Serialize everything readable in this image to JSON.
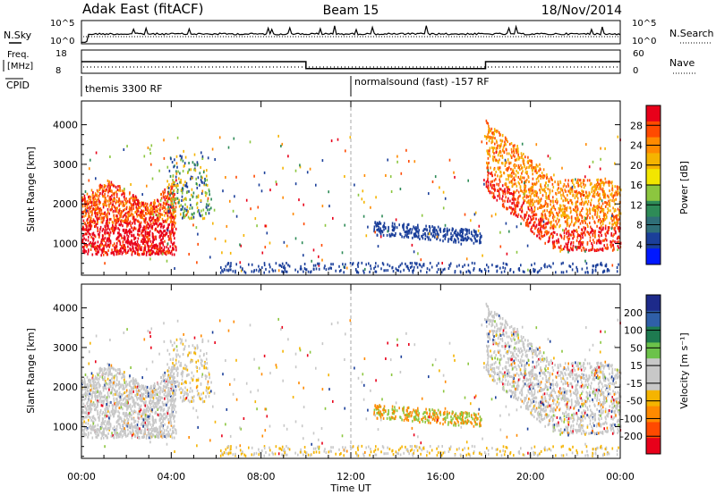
{
  "header": {
    "station": "Adak East (fitACF)",
    "beam": "Beam 15",
    "date": "18/Nov/2014"
  },
  "top_panels": {
    "nsky_label": "N.Sky",
    "nsearch_label": "N.Search",
    "nsky_ticks": [
      "10^5",
      "10^0"
    ],
    "nsearch_ticks": [
      "10^5",
      "10^0"
    ],
    "freq_label_line1": "Freq.",
    "freq_label_line2": "[MHz]",
    "freq_ticks": [
      "18",
      "8"
    ],
    "nave_label": "Nave",
    "nave_ticks": [
      "60",
      "0"
    ],
    "cpid_label": "CPID",
    "cpid_segments": [
      {
        "label": "themis 3300 RF",
        "start": "00:00",
        "end": "12:00"
      },
      {
        "label": "normalsound (fast) -157 RF",
        "start": "12:00",
        "end": "24:00"
      }
    ]
  },
  "power_panel": {
    "ylabel": "Slant Range [km]",
    "yticks": [
      "4000",
      "3000",
      "2000",
      "1000"
    ],
    "colorbar_label": "Power [dB]",
    "colorbar_ticks": [
      "28",
      "24",
      "20",
      "16",
      "12",
      "8",
      "4"
    ],
    "colorbar_colors": [
      "#e8001a",
      "#ff4a00",
      "#ff8a00",
      "#f5b400",
      "#f2e600",
      "#8cc63f",
      "#2e8b57",
      "#2f6e78",
      "#1b3f9a",
      "#0018ff"
    ]
  },
  "velocity_panel": {
    "ylabel": "Slant Range [km]",
    "yticks": [
      "4000",
      "3000",
      "2000",
      "1000"
    ],
    "colorbar_label": "Velocity [m s⁻¹]",
    "colorbar_ticks": [
      "200",
      "100",
      "50",
      "15",
      "-15",
      "-50",
      "-100",
      "-200"
    ],
    "colorbar_colors": [
      "#1d2a8a",
      "#2f5fa8",
      "#1e7a50",
      "#6cc24a",
      "#c8c8c8",
      "#c8c8c8",
      "#f5b400",
      "#ff8a00",
      "#ff4a00",
      "#e8001a"
    ]
  },
  "xaxis": {
    "ticks": [
      "00:00",
      "04:00",
      "08:00",
      "12:00",
      "16:00",
      "20:00",
      "00:00"
    ],
    "label": "Time UT"
  },
  "chart_data": {
    "type": "heatmap",
    "title": "Adak East (fitACF)",
    "subtitle": "Beam 15",
    "xlabel": "Time UT",
    "ylabel": "Slant Range [km]",
    "xlim_hours": [
      0,
      24
    ],
    "ylim": [
      200,
      4600
    ],
    "panels": [
      {
        "name": "Power",
        "unit": "dB",
        "range": [
          0,
          30
        ]
      },
      {
        "name": "Velocity",
        "unit": "m s⁻¹",
        "range": [
          -250,
          250
        ]
      }
    ],
    "frequency": {
      "before_10h": 13,
      "10h_to_18h": 10,
      "after_18h": 13,
      "unit": "MHz"
    },
    "grid": false
  }
}
